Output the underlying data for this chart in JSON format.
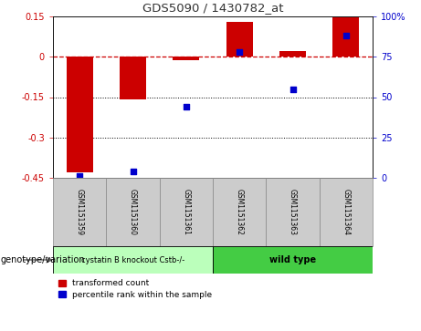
{
  "title": "GDS5090 / 1430782_at",
  "samples": [
    "GSM1151359",
    "GSM1151360",
    "GSM1151361",
    "GSM1151362",
    "GSM1151363",
    "GSM1151364"
  ],
  "red_values": [
    -0.43,
    -0.16,
    -0.012,
    0.13,
    0.02,
    0.145
  ],
  "blue_values": [
    1,
    4,
    44,
    78,
    55,
    88
  ],
  "ylim_left": [
    -0.45,
    0.15
  ],
  "ylim_right": [
    0,
    100
  ],
  "yticks_left": [
    -0.45,
    -0.3,
    -0.15,
    0.0,
    0.15
  ],
  "ytick_labels_left": [
    "-0.45",
    "-0.3",
    "-0.15",
    "0",
    "0.15"
  ],
  "yticks_right": [
    0,
    25,
    50,
    75,
    100
  ],
  "ytick_labels_right": [
    "0",
    "25",
    "50",
    "75",
    "100%"
  ],
  "dotted_lines": [
    -0.15,
    -0.3
  ],
  "bar_width": 0.5,
  "red_color": "#cc0000",
  "blue_color": "#0000cc",
  "group1_label": "cystatin B knockout Cstb-/-",
  "group2_label": "wild type",
  "group1_color": "#bbffbb",
  "group2_color": "#44cc44",
  "group1_indices": [
    0,
    1,
    2
  ],
  "group2_indices": [
    3,
    4,
    5
  ],
  "genotype_label": "genotype/variation",
  "legend_red": "transformed count",
  "legend_blue": "percentile rank within the sample",
  "title_color": "#333333",
  "sample_box_color": "#cccccc",
  "fig_width": 4.61,
  "fig_height": 3.63,
  "dpi": 100
}
